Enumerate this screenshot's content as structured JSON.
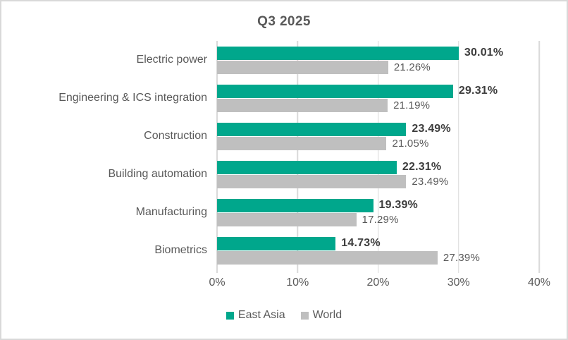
{
  "chart_data": {
    "type": "bar",
    "orientation": "horizontal",
    "title": "Q3 2025",
    "categories": [
      "Electric power",
      "Engineering & ICS integration",
      "Construction",
      "Building automation",
      "Manufacturing",
      "Biometrics"
    ],
    "series": [
      {
        "name": "East Asia",
        "color": "#00A78C",
        "values": [
          30.01,
          29.31,
          23.49,
          22.31,
          19.39,
          14.73
        ],
        "labels": [
          "30.01%",
          "29.31%",
          "23.49%",
          "22.31%",
          "19.39%",
          "14.73%"
        ]
      },
      {
        "name": "World",
        "color": "#BFBFBF",
        "values": [
          21.26,
          21.19,
          21.05,
          23.49,
          17.29,
          27.39
        ],
        "labels": [
          "21.26%",
          "21.19%",
          "21.05%",
          "23.49%",
          "17.29%",
          "27.39%"
        ]
      }
    ],
    "x_axis": {
      "min": 0,
      "max": 40,
      "tick_values": [
        0,
        10,
        20,
        30,
        40
      ],
      "tick_labels": [
        "0%",
        "10%",
        "20%",
        "30%",
        "40%"
      ]
    },
    "grid": true,
    "legend_position": "bottom",
    "gridline_color": "#D9D9D9",
    "text_color": "#595959"
  }
}
